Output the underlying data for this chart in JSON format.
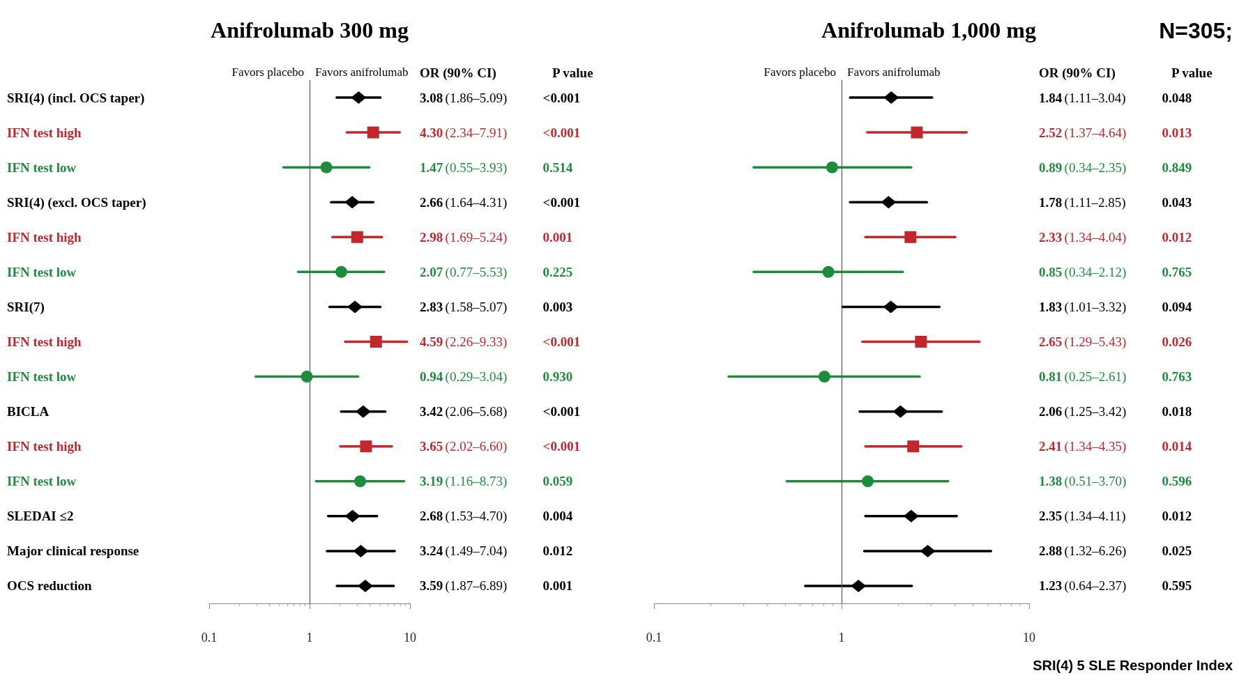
{
  "chart_data": [
    {
      "type": "scatter",
      "title": "Anifrolumab 300 mg",
      "orientation": "horizontal",
      "log": "x",
      "xlim": [
        0.1,
        10
      ],
      "xticks": [
        0.1,
        1,
        10
      ],
      "grid": false,
      "legend": false,
      "categories": [
        "SRI(4) (incl. OCS taper)",
        "IFN test high",
        "IFN test low",
        "SRI(4) (excl. OCS taper)",
        "IFN test high",
        "IFN test low",
        "SRI(7)",
        "IFN test high",
        "IFN test low",
        "BICLA",
        "IFN test high",
        "IFN test low",
        "SLEDAI ≤2",
        "Major clinical response",
        "OCS reduction"
      ],
      "series": [
        {
          "color": "#000000",
          "marker": "diamond",
          "values": [
            3.08,
            null,
            null,
            2.66,
            null,
            null,
            2.83,
            null,
            null,
            3.42,
            null,
            null,
            2.68,
            3.24,
            3.59
          ],
          "errors": [
            [
              1.86,
              5.09
            ],
            null,
            null,
            [
              1.64,
              4.31
            ],
            null,
            null,
            [
              1.58,
              5.07
            ],
            null,
            null,
            [
              2.06,
              5.68
            ],
            null,
            null,
            [
              1.53,
              4.7
            ],
            [
              1.49,
              7.04
            ],
            [
              1.87,
              6.89
            ]
          ],
          "value_labels": [
            "3.08 (1.86–5.09) <0.001",
            null,
            null,
            "2.66 (1.64–4.31) <0.001",
            null,
            null,
            "2.83 (1.58–5.07) 0.003",
            null,
            null,
            "3.42 (2.06–5.68) <0.001",
            null,
            null,
            "2.68 (1.53–4.70) 0.004",
            "3.24 (1.49–7.04) 0.012",
            "3.59 (1.87–6.89) 0.001"
          ]
        },
        {
          "color": "#c0282d",
          "marker": "square",
          "values": [
            null,
            4.3,
            null,
            null,
            2.98,
            null,
            null,
            4.59,
            null,
            null,
            3.65,
            null,
            null,
            null,
            null
          ],
          "errors": [
            null,
            [
              2.34,
              7.91
            ],
            null,
            null,
            [
              1.69,
              5.24
            ],
            null,
            null,
            [
              2.26,
              9.33
            ],
            null,
            null,
            [
              2.02,
              6.6
            ],
            null,
            null,
            null,
            null
          ],
          "value_labels": [
            null,
            "4.30 (2.34–7.91) <0.001",
            null,
            null,
            "2.98 (1.69–5.24) 0.001",
            null,
            null,
            "4.59 (2.26–9.33) <0.001",
            null,
            null,
            "3.65 (2.02–6.60) <0.001",
            null,
            null,
            null,
            null
          ]
        },
        {
          "color": "#1e8c3c",
          "marker": "circle",
          "values": [
            null,
            null,
            1.47,
            null,
            null,
            2.07,
            null,
            null,
            0.94,
            null,
            null,
            3.19,
            null,
            null,
            null
          ],
          "errors": [
            null,
            null,
            [
              0.55,
              3.93
            ],
            null,
            null,
            [
              0.77,
              5.53
            ],
            null,
            null,
            [
              0.29,
              3.04
            ],
            null,
            null,
            [
              1.16,
              8.73
            ],
            null,
            null,
            null
          ],
          "value_labels": [
            null,
            null,
            "1.47 (0.55–3.93) 0.514",
            null,
            null,
            "2.07 (0.77–5.53) 0.225",
            null,
            null,
            "0.94 (0.29–3.04) 0.930",
            null,
            null,
            "3.19 (1.16–8.73) 0.059",
            null,
            null,
            null
          ]
        }
      ],
      "ref_lines": [
        {
          "axis": "x",
          "value": 1,
          "color": "#555555"
        }
      ],
      "annotations": [
        "Favors placebo",
        "Favors anifrolumab",
        "OR (90% CI)",
        "P value"
      ]
    },
    {
      "type": "scatter",
      "title": "Anifrolumab 1,000 mg",
      "orientation": "horizontal",
      "log": "x",
      "xlim": [
        0.1,
        10
      ],
      "xticks": [
        0.1,
        1,
        10
      ],
      "grid": false,
      "legend": false,
      "tick_labels": "x",
      "categories": [
        null,
        null,
        null,
        null,
        null,
        null,
        null,
        null,
        null,
        null,
        null,
        null,
        null,
        null,
        null
      ],
      "series": [
        {
          "color": "#000000",
          "marker": "diamond",
          "values": [
            1.84,
            null,
            null,
            1.78,
            null,
            null,
            1.83,
            null,
            null,
            2.06,
            null,
            null,
            2.35,
            2.88,
            1.23
          ],
          "errors": [
            [
              1.11,
              3.04
            ],
            null,
            null,
            [
              1.11,
              2.85
            ],
            null,
            null,
            [
              1.01,
              3.32
            ],
            null,
            null,
            [
              1.25,
              3.42
            ],
            null,
            null,
            [
              1.34,
              4.11
            ],
            [
              1.32,
              6.26
            ],
            [
              0.64,
              2.37
            ]
          ],
          "value_labels": [
            "1.84 (1.11–3.04) 0.048",
            null,
            null,
            "1.78 (1.11–2.85) 0.043",
            null,
            null,
            "1.83 (1.01–3.32) 0.094",
            null,
            null,
            "2.06 (1.25–3.42) 0.018",
            null,
            null,
            "2.35 (1.34–4.11) 0.012",
            "2.88 (1.32–6.26) 0.025",
            "1.23 (0.64–2.37) 0.595"
          ]
        },
        {
          "color": "#c0282d",
          "marker": "square",
          "values": [
            null,
            2.52,
            null,
            null,
            2.33,
            null,
            null,
            2.65,
            null,
            null,
            2.41,
            null,
            null,
            null,
            null
          ],
          "errors": [
            null,
            [
              1.37,
              4.64
            ],
            null,
            null,
            [
              1.34,
              4.04
            ],
            null,
            null,
            [
              1.29,
              5.43
            ],
            null,
            null,
            [
              1.34,
              4.35
            ],
            null,
            null,
            null,
            null
          ],
          "value_labels": [
            null,
            "2.52 (1.37–4.64) 0.013",
            null,
            null,
            "2.33 (1.34–4.04) 0.012",
            null,
            null,
            "2.65 (1.29–5.43) 0.026",
            null,
            null,
            "2.41 (1.34–4.35) 0.014",
            null,
            null,
            null,
            null
          ]
        },
        {
          "color": "#1e8c3c",
          "marker": "circle",
          "values": [
            null,
            null,
            0.89,
            null,
            null,
            0.85,
            null,
            null,
            0.81,
            null,
            null,
            1.38,
            null,
            null,
            null
          ],
          "errors": [
            null,
            null,
            [
              0.34,
              2.35
            ],
            null,
            null,
            [
              0.34,
              2.12
            ],
            null,
            null,
            [
              0.25,
              2.61
            ],
            null,
            null,
            [
              0.51,
              3.7
            ],
            null,
            null,
            null
          ],
          "value_labels": [
            null,
            null,
            "0.89 (0.34–2.35) 0.849",
            null,
            null,
            "0.85 (0.34–2.12) 0.765",
            null,
            null,
            "0.81 (0.25–2.61) 0.763",
            null,
            null,
            "1.38 (0.51–3.70) 0.596",
            null,
            null,
            null
          ]
        }
      ],
      "ref_lines": [
        {
          "axis": "x",
          "value": 1,
          "color": "#555555"
        }
      ],
      "annotations": [
        "Favors placebo",
        "Favors anifrolumab",
        "OR (90% CI)",
        "P value",
        "N=305;",
        "SRI(4) 5 SLE Responder Index"
      ]
    }
  ]
}
